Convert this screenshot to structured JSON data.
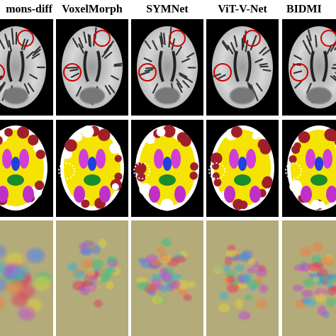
{
  "columns": [
    {
      "header": "mons-diff"
    },
    {
      "header": "VoxelMorph"
    },
    {
      "header": "SYMNet"
    },
    {
      "header": "ViT-V-Net"
    },
    {
      "header": "BIDMI"
    }
  ]
}
